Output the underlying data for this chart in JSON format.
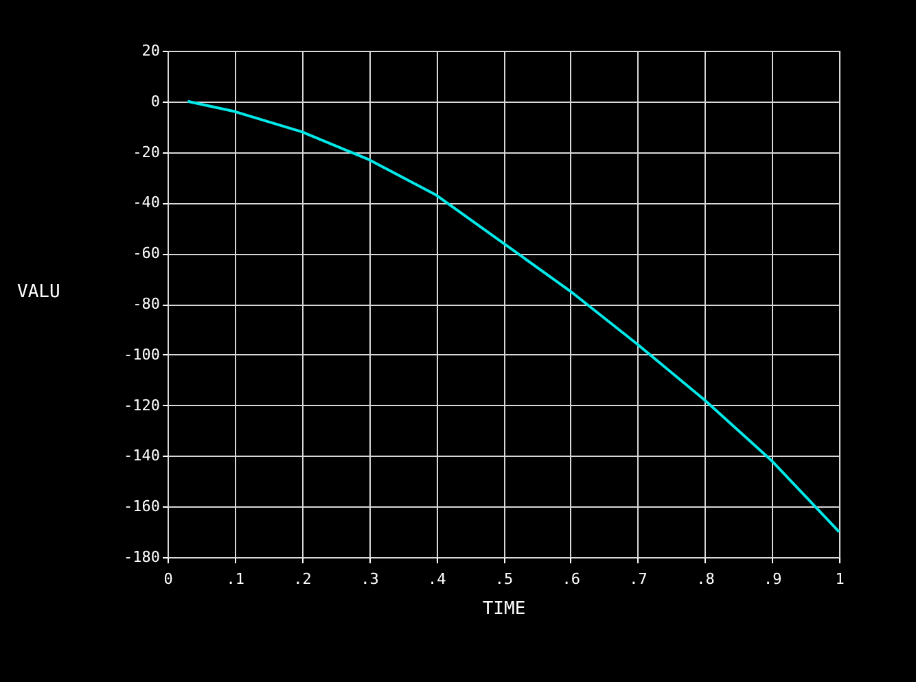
{
  "chart_data": {
    "type": "line",
    "xlabel": "TIME",
    "ylabel": "VALU",
    "x": [
      0.03,
      0.1,
      0.2,
      0.3,
      0.4,
      0.5,
      0.6,
      0.7,
      0.8,
      0.9,
      1
    ],
    "series": [
      {
        "color": "#00e8e8",
        "values": [
          0,
          -4,
          -12,
          -23,
          -37,
          -56,
          -75,
          -96,
          -118,
          -142,
          -170
        ]
      }
    ],
    "xlim": [
      0,
      1
    ],
    "xticks": [
      0,
      {
        "value": 0.1,
        "label": ".1"
      },
      {
        "value": 0.2,
        "label": ".2"
      },
      {
        "value": 0.3,
        "label": ".3"
      },
      {
        "value": 0.4,
        "label": ".4"
      },
      {
        "value": 0.5,
        "label": ".5"
      },
      {
        "value": 0.6,
        "label": ".6"
      },
      {
        "value": 0.7,
        "label": ".7"
      },
      {
        "value": 0.8,
        "label": ".8"
      },
      {
        "value": 0.9,
        "label": ".9"
      },
      1
    ],
    "ylim": [
      -180,
      20
    ],
    "yticks": [
      -180,
      -160,
      -140,
      -120,
      -100,
      -80,
      -60,
      -40,
      -20,
      0,
      20
    ],
    "grid": true,
    "marker": "none",
    "line_style": "solid"
  }
}
